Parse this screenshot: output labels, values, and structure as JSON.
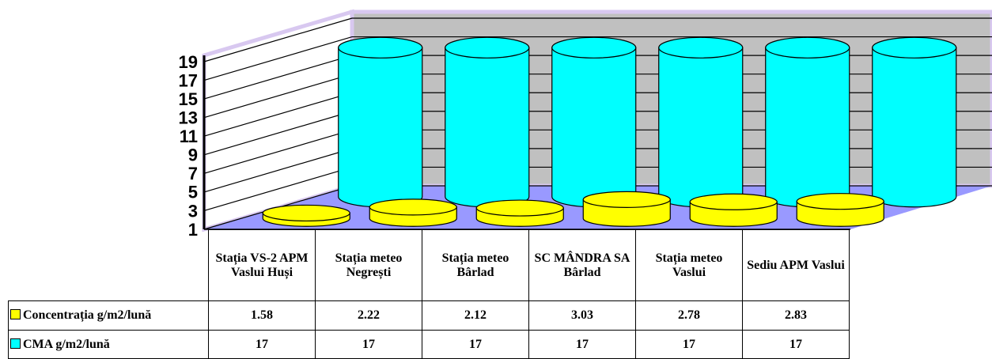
{
  "chart_data": {
    "type": "bar3d",
    "categories": [
      "Stația VS-2 APM Vaslui Huși",
      "Stația meteo Negrești",
      "Stația meteo Bârlad",
      "SC MÂNDRA SA Bârlad",
      "Stația meteo Vaslui",
      "Sediu APM Vaslui"
    ],
    "series": [
      {
        "name": "Concentrația g/m2/lună",
        "color": "#ffff00",
        "values": [
          1.58,
          2.22,
          2.12,
          3.03,
          2.78,
          2.83
        ]
      },
      {
        "name": "CMA g/m2/lună",
        "color": "#00ffff",
        "values": [
          17,
          17,
          17,
          17,
          17,
          17
        ]
      }
    ],
    "ylim": [
      1,
      19
    ],
    "yticks": [
      1,
      3,
      5,
      7,
      9,
      11,
      13,
      15,
      17,
      19
    ],
    "grid": true
  }
}
